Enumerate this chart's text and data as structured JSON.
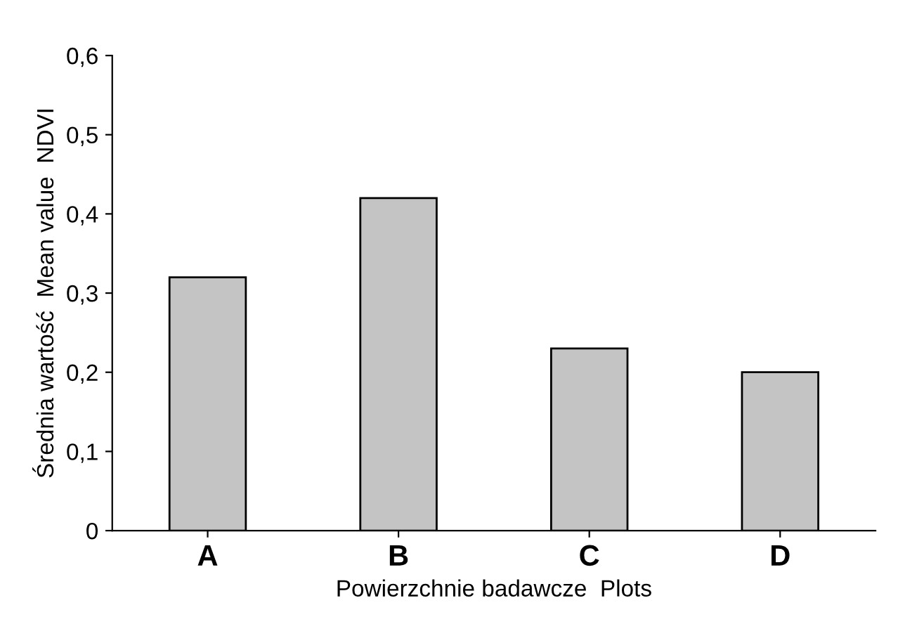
{
  "chart_data": {
    "type": "bar",
    "categories": [
      "A",
      "B",
      "C",
      "D"
    ],
    "values": [
      0.32,
      0.42,
      0.23,
      0.2
    ],
    "color": "#c4c4c4",
    "xlabel": "Powierzchnie badawcze  Plots",
    "ylabel": "Średnia wartość  Mean value  NDVI",
    "ylim": [
      0,
      0.6
    ],
    "yticks": [
      {
        "value": 0,
        "label": "0"
      },
      {
        "value": 0.1,
        "label": "0,1"
      },
      {
        "value": 0.2,
        "label": "0,2"
      },
      {
        "value": 0.3,
        "label": "0,3"
      },
      {
        "value": 0.4,
        "label": "0,4"
      },
      {
        "value": 0.5,
        "label": "0,5"
      },
      {
        "value": 0.6,
        "label": "0,6"
      }
    ],
    "grid": false,
    "legend": false
  }
}
